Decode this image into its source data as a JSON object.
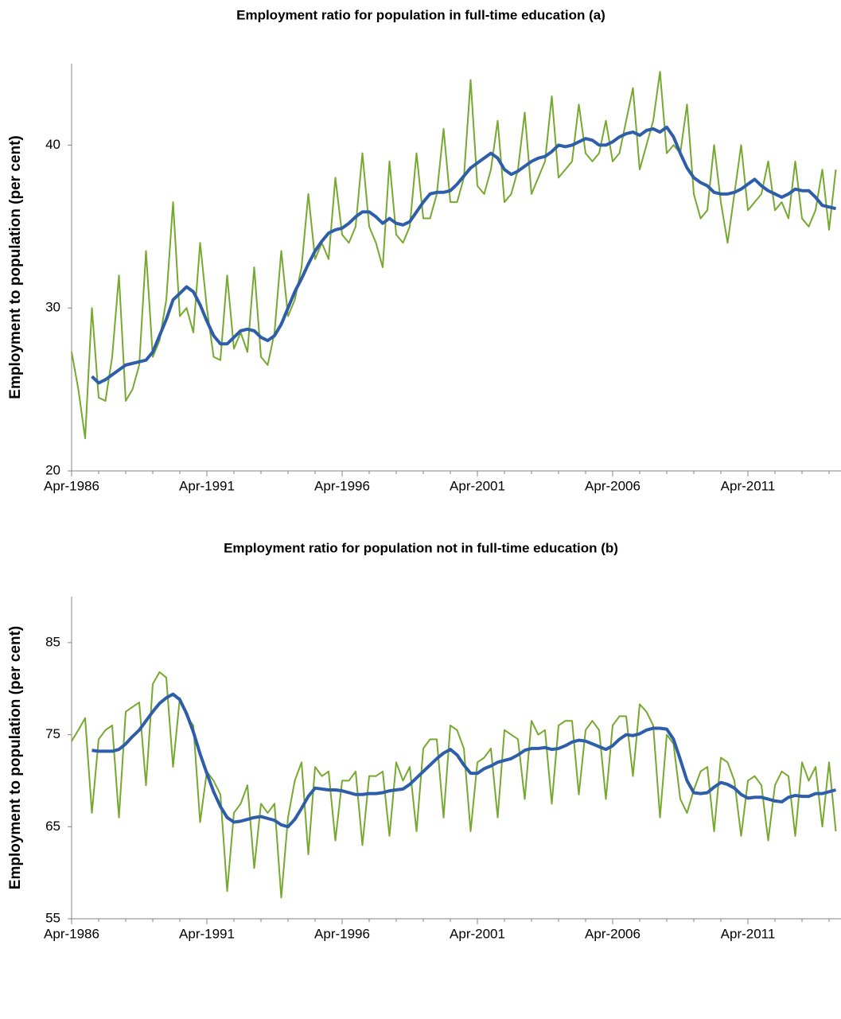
{
  "chart_data": [
    {
      "type": "line",
      "title": "Employment ratio for population in full-time education (a)",
      "y_label": "Employment to population (per cent)",
      "categories": [
        "Apr-1986",
        null,
        null,
        null,
        null,
        null,
        null,
        null,
        null,
        null,
        null,
        null,
        null,
        null,
        null,
        null,
        null,
        null,
        null,
        null,
        "Apr-1991",
        null,
        null,
        null,
        null,
        null,
        null,
        null,
        null,
        null,
        null,
        null,
        null,
        null,
        null,
        null,
        null,
        null,
        null,
        null,
        "Apr-1996",
        null,
        null,
        null,
        null,
        null,
        null,
        null,
        null,
        null,
        null,
        null,
        null,
        null,
        null,
        null,
        null,
        null,
        null,
        null,
        "Apr-2001",
        null,
        null,
        null,
        null,
        null,
        null,
        null,
        null,
        null,
        null,
        null,
        null,
        null,
        null,
        null,
        null,
        null,
        null,
        null,
        "Apr-2006",
        null,
        null,
        null,
        null,
        null,
        null,
        null,
        null,
        null,
        null,
        null,
        null,
        null,
        null,
        null,
        null,
        null,
        null,
        null,
        "Apr-2011",
        null,
        null,
        null,
        null,
        null,
        null,
        null,
        null,
        null,
        null,
        null,
        null,
        null
      ],
      "series": [
        {
          "color": "#77a830",
          "width": 2,
          "values": [
            27.3,
            25.0,
            22.0,
            30.0,
            24.5,
            24.3,
            27.0,
            32.0,
            24.3,
            25.0,
            26.5,
            33.5,
            27.0,
            28.0,
            30.5,
            36.5,
            29.5,
            30.0,
            28.5,
            34.0,
            30.0,
            27.0,
            26.8,
            32.0,
            27.5,
            28.5,
            27.3,
            32.5,
            27.0,
            26.5,
            28.5,
            33.5,
            29.5,
            30.5,
            32.5,
            37.0,
            33.0,
            34.0,
            33.0,
            38.0,
            34.5,
            34.0,
            35.0,
            39.5,
            35.0,
            34.0,
            32.5,
            39.0,
            34.5,
            34.0,
            35.0,
            39.5,
            35.5,
            35.5,
            37.0,
            41.0,
            36.5,
            36.5,
            38.0,
            44.0,
            37.5,
            37.0,
            38.5,
            41.5,
            36.5,
            37.0,
            38.5,
            42.0,
            37.0,
            38.0,
            39.0,
            43.0,
            38.0,
            38.5,
            39.0,
            42.5,
            39.5,
            39.0,
            39.5,
            41.5,
            39.0,
            39.5,
            41.5,
            43.5,
            38.5,
            40.0,
            41.5,
            44.5,
            39.5,
            40.0,
            39.5,
            42.5,
            37.0,
            35.5,
            36.0,
            40.0,
            36.5,
            34.0,
            37.0,
            40.0,
            36.0,
            36.5,
            37.0,
            39.0,
            36.0,
            36.5,
            35.5,
            39.0,
            35.5,
            35.0,
            36.0,
            38.5,
            34.8,
            38.5
          ]
        },
        {
          "color": "#2e5ea8",
          "width": 4,
          "values": [
            null,
            null,
            null,
            25.8,
            25.4,
            25.6,
            25.9,
            26.2,
            26.5,
            26.6,
            26.7,
            26.8,
            27.3,
            28.3,
            29.3,
            30.5,
            30.9,
            31.3,
            31.0,
            30.2,
            29.2,
            28.3,
            27.8,
            27.8,
            28.2,
            28.6,
            28.7,
            28.6,
            28.2,
            28.0,
            28.3,
            29.0,
            30.0,
            31.0,
            31.8,
            32.7,
            33.5,
            34.1,
            34.6,
            34.8,
            34.9,
            35.2,
            35.6,
            35.9,
            35.9,
            35.6,
            35.2,
            35.5,
            35.2,
            35.1,
            35.3,
            35.9,
            36.5,
            37.0,
            37.1,
            37.1,
            37.2,
            37.6,
            38.1,
            38.6,
            38.9,
            39.2,
            39.5,
            39.2,
            38.5,
            38.2,
            38.4,
            38.7,
            39.0,
            39.2,
            39.3,
            39.6,
            40.0,
            39.9,
            40.0,
            40.2,
            40.4,
            40.3,
            40.0,
            40.0,
            40.2,
            40.5,
            40.7,
            40.8,
            40.6,
            40.9,
            41.0,
            40.8,
            41.1,
            40.5,
            39.5,
            38.6,
            38.0,
            37.7,
            37.5,
            37.1,
            37.0,
            37.0,
            37.1,
            37.3,
            37.6,
            37.9,
            37.5,
            37.2,
            37.0,
            36.8,
            37.0,
            37.3,
            37.2,
            37.2,
            36.8,
            36.3,
            36.2,
            36.1
          ]
        }
      ],
      "ylim": [
        20,
        45
      ],
      "yticks": [
        20,
        30,
        40
      ]
    },
    {
      "type": "line",
      "title": "Employment ratio for population not in full-time education (b)",
      "y_label": "Employment to population (per cent)",
      "categories": [
        "Apr-1986",
        null,
        null,
        null,
        null,
        null,
        null,
        null,
        null,
        null,
        null,
        null,
        null,
        null,
        null,
        null,
        null,
        null,
        null,
        null,
        "Apr-1991",
        null,
        null,
        null,
        null,
        null,
        null,
        null,
        null,
        null,
        null,
        null,
        null,
        null,
        null,
        null,
        null,
        null,
        null,
        null,
        "Apr-1996",
        null,
        null,
        null,
        null,
        null,
        null,
        null,
        null,
        null,
        null,
        null,
        null,
        null,
        null,
        null,
        null,
        null,
        null,
        null,
        "Apr-2001",
        null,
        null,
        null,
        null,
        null,
        null,
        null,
        null,
        null,
        null,
        null,
        null,
        null,
        null,
        null,
        null,
        null,
        null,
        null,
        "Apr-2006",
        null,
        null,
        null,
        null,
        null,
        null,
        null,
        null,
        null,
        null,
        null,
        null,
        null,
        null,
        null,
        null,
        null,
        null,
        null,
        "Apr-2011",
        null,
        null,
        null,
        null,
        null,
        null,
        null,
        null,
        null,
        null,
        null,
        null,
        null
      ],
      "series": [
        {
          "color": "#77a830",
          "width": 2,
          "values": [
            74.3,
            75.5,
            76.8,
            66.5,
            74.5,
            75.5,
            76.0,
            66.0,
            77.5,
            78.0,
            78.5,
            69.5,
            80.5,
            81.8,
            81.2,
            71.5,
            79.0,
            77.0,
            76.0,
            65.5,
            71.0,
            70.0,
            68.5,
            58.0,
            66.5,
            67.5,
            69.5,
            60.5,
            67.5,
            66.5,
            67.5,
            57.3,
            66.0,
            70.0,
            72.0,
            62.0,
            71.5,
            70.5,
            71.0,
            63.5,
            70.0,
            70.0,
            71.0,
            63.0,
            70.5,
            70.5,
            71.0,
            64.0,
            72.0,
            70.0,
            71.5,
            64.5,
            73.5,
            74.5,
            74.5,
            66.0,
            76.0,
            75.5,
            73.5,
            64.5,
            72.0,
            72.5,
            73.5,
            66.0,
            75.5,
            75.0,
            74.5,
            68.0,
            76.5,
            75.0,
            75.5,
            67.5,
            76.0,
            76.5,
            76.5,
            68.5,
            75.5,
            76.5,
            75.5,
            68.0,
            76.0,
            77.0,
            77.0,
            70.5,
            78.3,
            77.5,
            76.0,
            66.0,
            75.0,
            74.0,
            68.0,
            66.5,
            69.0,
            71.0,
            71.5,
            64.5,
            72.5,
            72.0,
            70.0,
            64.0,
            70.0,
            70.5,
            69.5,
            63.5,
            69.5,
            71.0,
            70.5,
            64.0,
            72.0,
            70.0,
            71.5,
            65.0,
            72.0,
            64.5
          ]
        },
        {
          "color": "#2e5ea8",
          "width": 4,
          "values": [
            null,
            null,
            null,
            73.3,
            73.2,
            73.2,
            73.2,
            73.4,
            74.0,
            74.8,
            75.5,
            76.5,
            77.5,
            78.4,
            79.0,
            79.4,
            78.8,
            77.3,
            75.3,
            72.9,
            70.8,
            68.8,
            67.2,
            66.0,
            65.5,
            65.6,
            65.8,
            66.0,
            66.1,
            65.9,
            65.7,
            65.2,
            65.0,
            65.8,
            67.0,
            68.3,
            69.2,
            69.1,
            69.0,
            69.0,
            68.9,
            68.7,
            68.5,
            68.5,
            68.6,
            68.6,
            68.7,
            68.9,
            69.0,
            69.1,
            69.6,
            70.3,
            71.0,
            71.7,
            72.4,
            73.0,
            73.4,
            72.8,
            71.7,
            70.8,
            70.8,
            71.3,
            71.6,
            72.0,
            72.2,
            72.4,
            72.8,
            73.3,
            73.5,
            73.5,
            73.6,
            73.4,
            73.5,
            73.8,
            74.2,
            74.4,
            74.3,
            74.0,
            73.7,
            73.4,
            73.8,
            74.5,
            75.0,
            74.9,
            75.1,
            75.5,
            75.7,
            75.7,
            75.6,
            74.5,
            72.3,
            70.0,
            68.7,
            68.6,
            68.7,
            69.3,
            69.8,
            69.6,
            69.2,
            68.5,
            68.1,
            68.2,
            68.2,
            68.0,
            67.8,
            67.7,
            68.2,
            68.4,
            68.3,
            68.3,
            68.6,
            68.6,
            68.8,
            69.0
          ]
        }
      ],
      "ylim": [
        55,
        90
      ],
      "yticks": [
        55,
        65,
        75,
        85
      ]
    }
  ]
}
